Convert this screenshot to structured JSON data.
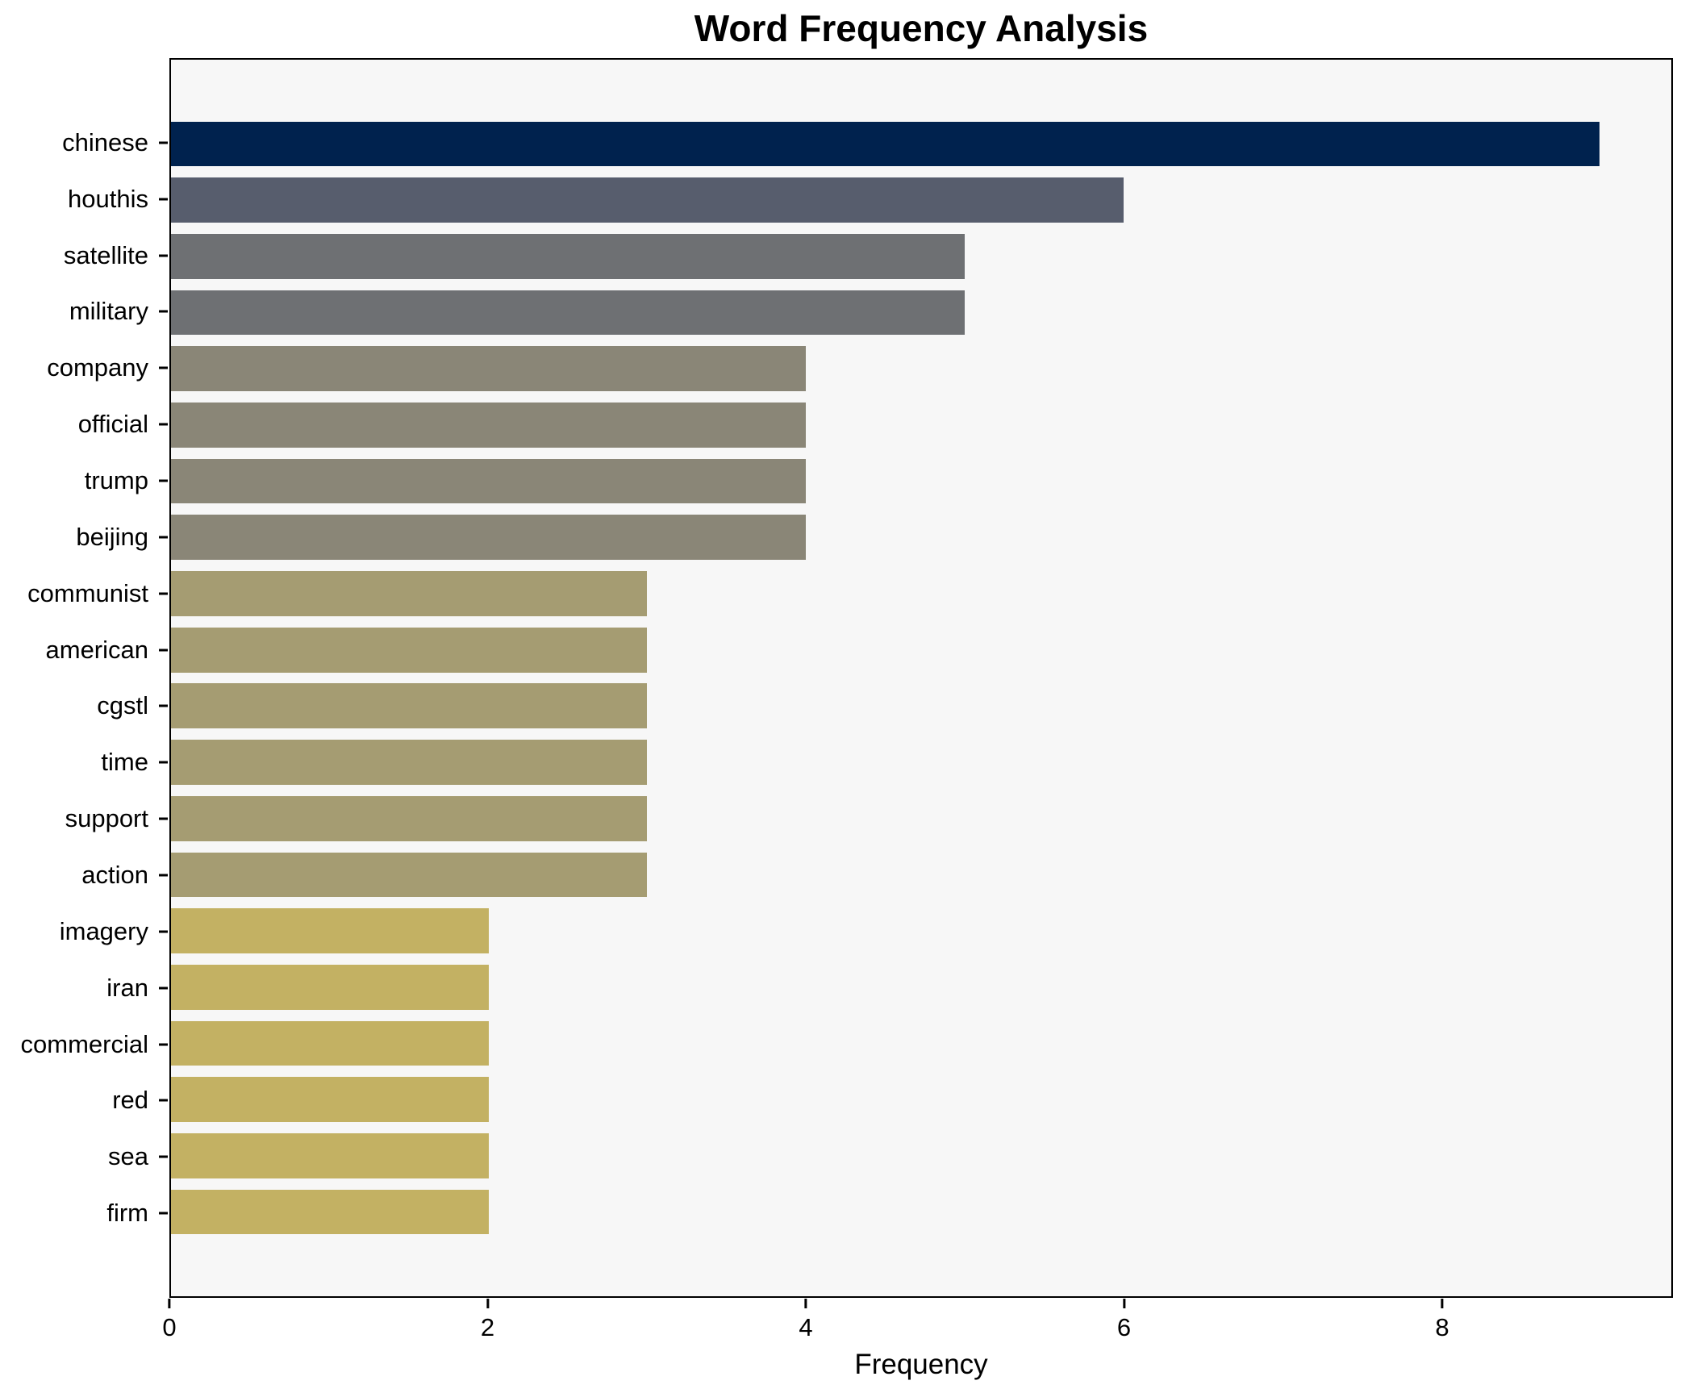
{
  "chart_data": {
    "type": "bar",
    "orientation": "horizontal",
    "title": "Word Frequency Analysis",
    "xlabel": "Frequency",
    "ylabel": "",
    "categories": [
      "chinese",
      "houthis",
      "satellite",
      "military",
      "company",
      "official",
      "trump",
      "beijing",
      "communist",
      "american",
      "cgstl",
      "time",
      "support",
      "action",
      "imagery",
      "iran",
      "commercial",
      "red",
      "sea",
      "firm"
    ],
    "values": [
      9,
      6,
      5,
      5,
      4,
      4,
      4,
      4,
      3,
      3,
      3,
      3,
      3,
      3,
      2,
      2,
      2,
      2,
      2,
      2
    ],
    "bar_colors": [
      "#00224e",
      "#575d6d",
      "#6e7073",
      "#6e7073",
      "#8a8677",
      "#8a8677",
      "#8a8677",
      "#8a8677",
      "#a59c72",
      "#a59c72",
      "#a59c72",
      "#a59c72",
      "#a59c72",
      "#a59c72",
      "#c3b163",
      "#c3b163",
      "#c3b163",
      "#c3b163",
      "#c3b163",
      "#c3b163"
    ],
    "xlim": [
      0,
      9.45
    ],
    "xticks": [
      "0",
      "2",
      "4",
      "6",
      "8"
    ],
    "xtick_values": [
      0,
      2,
      4,
      6,
      8
    ],
    "grid": false,
    "legend": false,
    "plot_bg": "#f7f7f7",
    "fig_bg": "#ffffff",
    "axis_border_color": "#000000"
  }
}
